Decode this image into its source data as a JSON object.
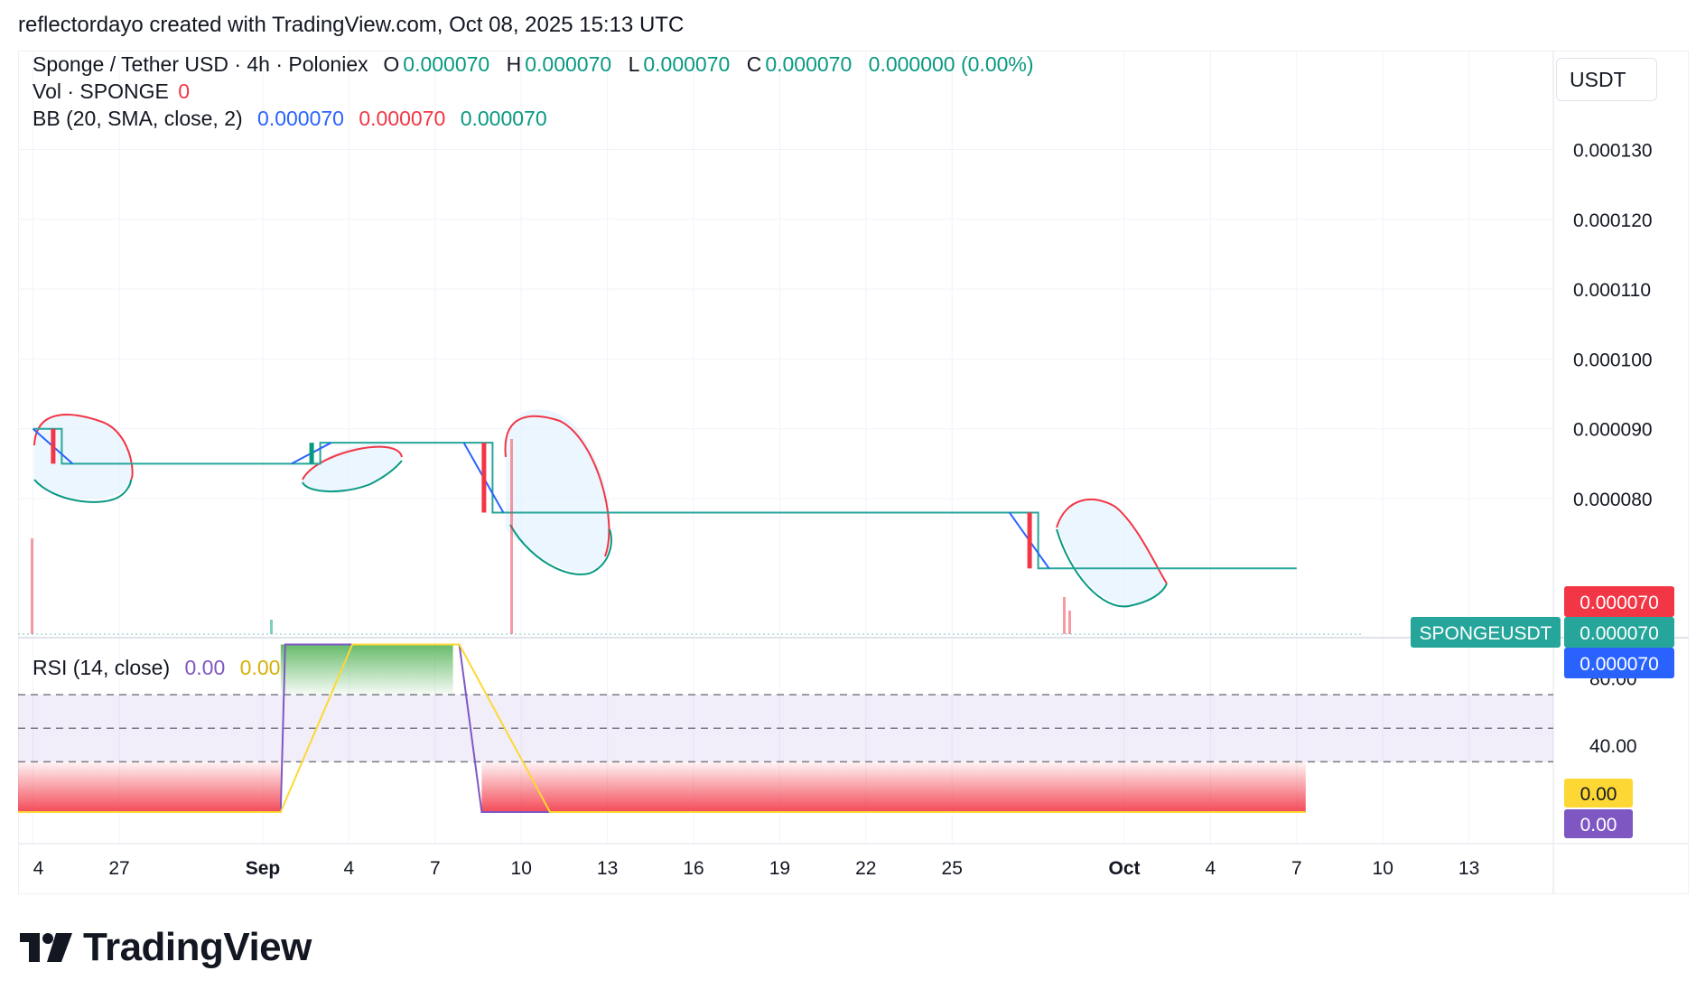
{
  "header": {
    "text": "reflectordayo created with TradingView.com, Oct 08, 2025 15:13 UTC"
  },
  "brand": {
    "name": "TradingView"
  },
  "currency_button": {
    "label": "USDT"
  },
  "legend": {
    "symbol": "Sponge / Tether USD · 4h · Poloniex",
    "o_label": "O",
    "o_value": "0.000070",
    "h_label": "H",
    "h_value": "0.000070",
    "l_label": "L",
    "l_value": "0.000070",
    "c_label": "C",
    "c_value": "0.000070",
    "change": "0.000000 (0.00%)",
    "vol_label": "Vol · SPONGE",
    "vol_value": "0",
    "bb_label": "BB (20, SMA, close, 2)",
    "bb_basis": "0.000070",
    "bb_upper": "0.000070",
    "bb_lower": "0.000070",
    "rsi_label": "RSI (14, close)",
    "rsi_value": "0.00",
    "rsi_ma_value": "0.00"
  },
  "colors": {
    "up": "#089981",
    "down": "#f23645",
    "bb_basis": "#2962ff",
    "bb_upper": "#f23645",
    "bb_lower": "#089981",
    "bb_fill": "#e3f2fd",
    "rsi": "#7e57c2",
    "rsi_ma": "#fdd835"
  },
  "chart_data": [
    {
      "type": "line",
      "name": "price",
      "x_ticks": [
        "4",
        "27",
        "Sep",
        "4",
        "7",
        "10",
        "13",
        "16",
        "19",
        "22",
        "25",
        "Oct",
        "4",
        "7",
        "10",
        "13"
      ],
      "y_ticks": [
        "0.000130",
        "0.000120",
        "0.000110",
        "0.000100",
        "0.000090",
        "0.000080"
      ],
      "y_range": [
        6.15e-05,
        0.000139
      ],
      "price_labels": [
        {
          "text": "0.000070",
          "color": "#f23645",
          "value": 7.07e-05
        },
        {
          "text": "SPONGEUSDT",
          "color": "#26a69a",
          "value": 7.02e-05
        },
        {
          "text": "0.000070",
          "color": "#26a69a",
          "value": 7.02e-05
        },
        {
          "text": "0.000070",
          "color": "#2962ff",
          "value": 6.97e-05
        }
      ],
      "close": [
        {
          "date": "Aug 24",
          "value": 9e-05
        },
        {
          "date": "Aug 25",
          "value": 8.5e-05
        },
        {
          "date": "Sep 2",
          "value": 8.5e-05
        },
        {
          "date": "Sep 3",
          "value": 8.8e-05
        },
        {
          "date": "Sep 8",
          "value": 8.8e-05
        },
        {
          "date": "Sep 9",
          "value": 7.8e-05
        },
        {
          "date": "Sep 27",
          "value": 7.8e-05
        },
        {
          "date": "Sep 28",
          "value": 7e-05
        },
        {
          "date": "Oct 7",
          "value": 7e-05
        }
      ]
    },
    {
      "type": "line",
      "name": "rsi",
      "y_ticks": [
        "80.00",
        "40.00"
      ],
      "value_labels": [
        {
          "text": "0.00",
          "color": "#fdd835"
        },
        {
          "text": "0.00",
          "color": "#7e57c2"
        }
      ],
      "levels": [
        70,
        50,
        30
      ]
    }
  ]
}
